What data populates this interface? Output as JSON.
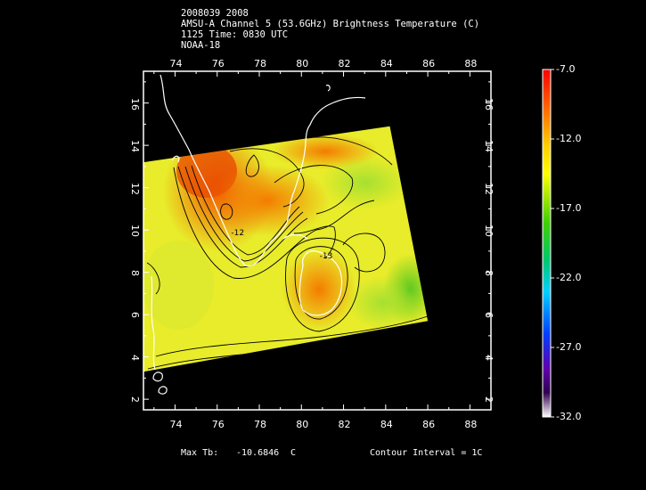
{
  "header": {
    "line1": "2008039 2008",
    "line2": "AMSU-A Channel 5 (53.6GHz) Brightness Temperature (C)",
    "line3": "1125 Time: 0830 UTC",
    "line4": "NOAA-18"
  },
  "map": {
    "lon_range": [
      72.5,
      89.0
    ],
    "lat_range": [
      1.5,
      17.5
    ],
    "lon_ticks": [
      "74",
      "76",
      "78",
      "80",
      "82",
      "84",
      "86",
      "88"
    ],
    "lat_ticks": [
      "2",
      "4",
      "6",
      "8",
      "10",
      "12",
      "14",
      "16"
    ],
    "swath_corners_lonlat": [
      [
        72.5,
        13.2
      ],
      [
        84.2,
        14.9
      ],
      [
        86.0,
        5.7
      ],
      [
        72.5,
        3.3
      ]
    ],
    "contour_labels": [
      {
        "text": "-12",
        "lon": 77.0,
        "lat": 9.8
      },
      {
        "text": "-13",
        "lon": 81.2,
        "lat": 8.7
      }
    ]
  },
  "colorbar": {
    "min": -32.0,
    "max": -7.0,
    "tick_labels": [
      "-7.0",
      "-12.0",
      "-17.0",
      "-22.0",
      "-27.0",
      "-32.0"
    ],
    "colors": [
      "#ff0000",
      "#ff8000",
      "#ffff00",
      "#00cc00",
      "#00c8ff",
      "#0000ff",
      "#6600aa",
      "#ffffff"
    ]
  },
  "footer": {
    "max_label": "Max Tb:",
    "max_value": "-10.6846",
    "max_unit": "C",
    "contour_interval": "Contour Interval = 1C"
  }
}
